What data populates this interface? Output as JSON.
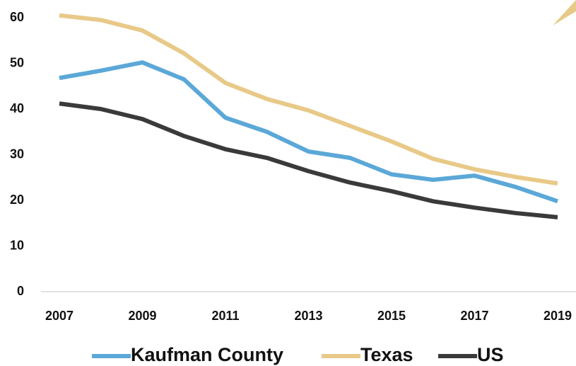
{
  "chart_data": {
    "type": "line",
    "x": [
      2007,
      2008,
      2009,
      2010,
      2011,
      2012,
      2013,
      2014,
      2015,
      2016,
      2017,
      2018,
      2019
    ],
    "xlim": [
      2007,
      2019
    ],
    "xticks": [
      2007,
      2009,
      2011,
      2013,
      2015,
      2017,
      2019
    ],
    "ylim": [
      0,
      60
    ],
    "yticks": [
      0,
      10,
      20,
      30,
      40,
      50,
      60
    ],
    "grid": false,
    "legend": "bottom",
    "series": [
      {
        "name": "Kaufman County",
        "color": "#5ba8d8",
        "values": [
          46.8,
          48.4,
          50.2,
          46.5,
          38.1,
          35,
          30.7,
          29.3,
          25.7,
          24.5,
          25.4,
          22.9,
          19.8
        ]
      },
      {
        "name": "Texas",
        "color": "#e8c987",
        "values": [
          60.5,
          59.5,
          57.2,
          52.2,
          45.7,
          42.2,
          39.7,
          36.3,
          32.9,
          29.1,
          26.8,
          25.1,
          23.7
        ]
      },
      {
        "name": "US",
        "color": "#3a3a3a",
        "values": [
          41.2,
          40,
          37.8,
          34.1,
          31.2,
          29.3,
          26.4,
          23.9,
          22,
          19.8,
          18.4,
          17.2,
          16.3
        ]
      }
    ]
  }
}
